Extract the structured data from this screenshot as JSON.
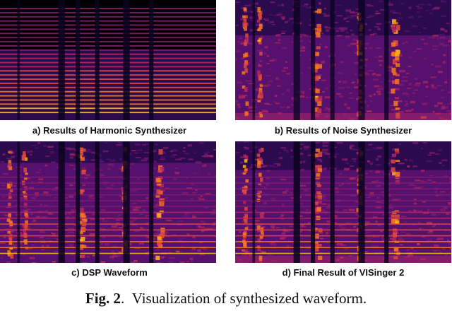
{
  "panels": [
    {
      "label": "a) Results of Harmonic Synthesizer",
      "kind": "harmonic"
    },
    {
      "label": "b) Results of Noise Synthesizer",
      "kind": "noise"
    },
    {
      "label": "c) DSP Waveform",
      "kind": "dsp"
    },
    {
      "label": "d) Final Result of VISinger 2",
      "kind": "final"
    }
  ],
  "caption": {
    "fig_label": "Fig. 2",
    "text": "Visualization of synthesized waveform."
  },
  "colormap": [
    "#000004",
    "#2b0a4e",
    "#56106e",
    "#841c6c",
    "#b5275d",
    "#dd4a3c",
    "#f4781c",
    "#fbb51a",
    "#fcf9a8"
  ]
}
